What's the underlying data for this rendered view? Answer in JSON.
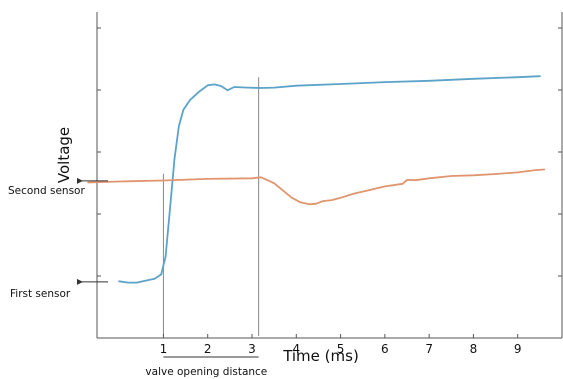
{
  "chart_data": {
    "type": "line",
    "title": "",
    "xlabel": "Time (ms)",
    "ylabel": "Voltage",
    "xlim": [
      -0.5,
      10
    ],
    "ylim": [
      0,
      1
    ],
    "x_ticks": [
      1,
      2,
      3,
      4,
      5,
      6,
      7,
      8,
      9
    ],
    "y_tick_count": 5,
    "grid": false,
    "series": [
      {
        "color": "#5ba3c8",
        "points": [
          [
            0.0,
            0.174
          ],
          [
            0.2,
            0.17
          ],
          [
            0.4,
            0.17
          ],
          [
            0.6,
            0.176
          ],
          [
            0.8,
            0.182
          ],
          [
            0.95,
            0.195
          ],
          [
            1.05,
            0.25
          ],
          [
            1.15,
            0.4
          ],
          [
            1.25,
            0.55
          ],
          [
            1.35,
            0.65
          ],
          [
            1.45,
            0.7
          ],
          [
            1.6,
            0.73
          ],
          [
            1.8,
            0.755
          ],
          [
            2.0,
            0.775
          ],
          [
            2.15,
            0.778
          ],
          [
            2.3,
            0.773
          ],
          [
            2.45,
            0.76
          ],
          [
            2.6,
            0.77
          ],
          [
            2.9,
            0.768
          ],
          [
            3.2,
            0.767
          ],
          [
            3.5,
            0.768
          ],
          [
            4.0,
            0.774
          ],
          [
            5.0,
            0.779
          ],
          [
            6.0,
            0.785
          ],
          [
            7.0,
            0.789
          ],
          [
            8.0,
            0.795
          ],
          [
            9.0,
            0.8
          ],
          [
            9.5,
            0.803
          ]
        ]
      },
      {
        "color": "#e0956e",
        "points": [
          [
            -0.7,
            0.477
          ],
          [
            0.0,
            0.48
          ],
          [
            1.0,
            0.483
          ],
          [
            2.0,
            0.488
          ],
          [
            3.0,
            0.49
          ],
          [
            3.2,
            0.493
          ],
          [
            3.3,
            0.487
          ],
          [
            3.5,
            0.475
          ],
          [
            3.7,
            0.452
          ],
          [
            3.9,
            0.43
          ],
          [
            4.1,
            0.416
          ],
          [
            4.3,
            0.41
          ],
          [
            4.45,
            0.412
          ],
          [
            4.6,
            0.42
          ],
          [
            4.8,
            0.423
          ],
          [
            5.0,
            0.43
          ],
          [
            5.3,
            0.443
          ],
          [
            5.6,
            0.452
          ],
          [
            6.0,
            0.465
          ],
          [
            6.4,
            0.473
          ],
          [
            6.5,
            0.485
          ],
          [
            6.7,
            0.484
          ],
          [
            7.0,
            0.49
          ],
          [
            7.5,
            0.497
          ],
          [
            8.0,
            0.499
          ],
          [
            8.5,
            0.503
          ],
          [
            9.0,
            0.508
          ],
          [
            9.4,
            0.515
          ],
          [
            9.6,
            0.517
          ]
        ]
      }
    ],
    "reference_lines_x": [
      1.0,
      3.15
    ],
    "annotations": [
      {
        "text": "Second sensor",
        "x": -0.5,
        "y": 0.482
      },
      {
        "text": "First sensor",
        "x": -0.5,
        "y": 0.172
      },
      {
        "text": "valve opening distance",
        "x_from": 1.0,
        "x_to": 3.15
      }
    ]
  }
}
